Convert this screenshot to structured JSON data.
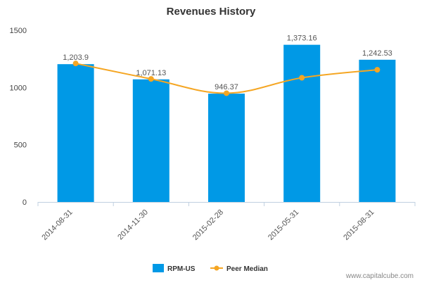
{
  "chart_data": {
    "type": "bar",
    "title": "Revenues History",
    "categories": [
      "2014-08-31",
      "2014-11-30",
      "2015-02-28",
      "2015-05-31",
      "2015-08-31"
    ],
    "series": [
      {
        "name": "RPM-US",
        "kind": "bar",
        "color": "#0099e6",
        "values": [
          1203.9,
          1071.13,
          946.37,
          1373.16,
          1242.53
        ],
        "labels": [
          "1,203.9",
          "1,071.13",
          "946.37",
          "1,373.16",
          "1,242.53"
        ]
      },
      {
        "name": "Peer Median",
        "kind": "line",
        "color": "#f5a623",
        "values": [
          1210,
          1075,
          950,
          1085,
          1155
        ]
      }
    ],
    "yticks": [
      "0",
      "500",
      "1000",
      "1500"
    ],
    "ylim": [
      0,
      1500
    ],
    "grid": false,
    "legend_position": "bottom"
  },
  "watermark": "www.capitalcube.com"
}
